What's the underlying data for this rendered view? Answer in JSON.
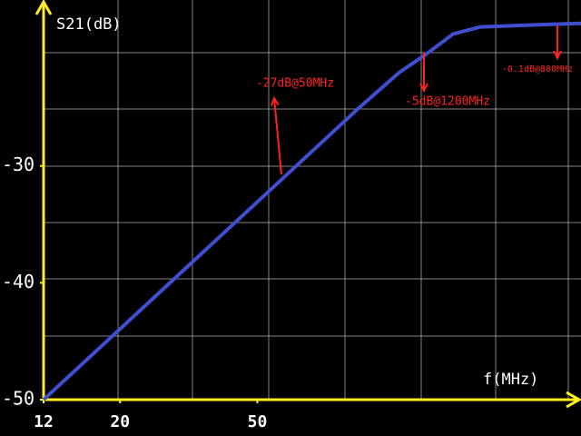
{
  "chart_data": {
    "type": "line",
    "xlabel": "f(MHz)",
    "ylabel": "S21(dB)",
    "xscale": "log",
    "x": [
      12,
      30.1,
      98,
      129,
      155,
      185,
      222,
      341,
      434
    ],
    "series": [
      {
        "name": "S21",
        "color": "#3f4fd0",
        "values": [
          -50,
          -39.1,
          -25.1,
          -22.0,
          -20.4,
          -18.7,
          -18.1,
          -17.9,
          -17.8
        ]
      }
    ],
    "xlim": [
      12,
      434
    ],
    "ylim": [
      -50,
      -15.8
    ],
    "xticks": [
      12,
      20,
      50
    ],
    "yticks": [
      -50,
      -40,
      -30
    ],
    "annotations": [
      "-27dB@50MHz",
      "-5dB@1200MHz",
      "-0.1dB@800MHz"
    ],
    "axis_color": "#ffee22",
    "annotation_color": "#ff2020"
  }
}
